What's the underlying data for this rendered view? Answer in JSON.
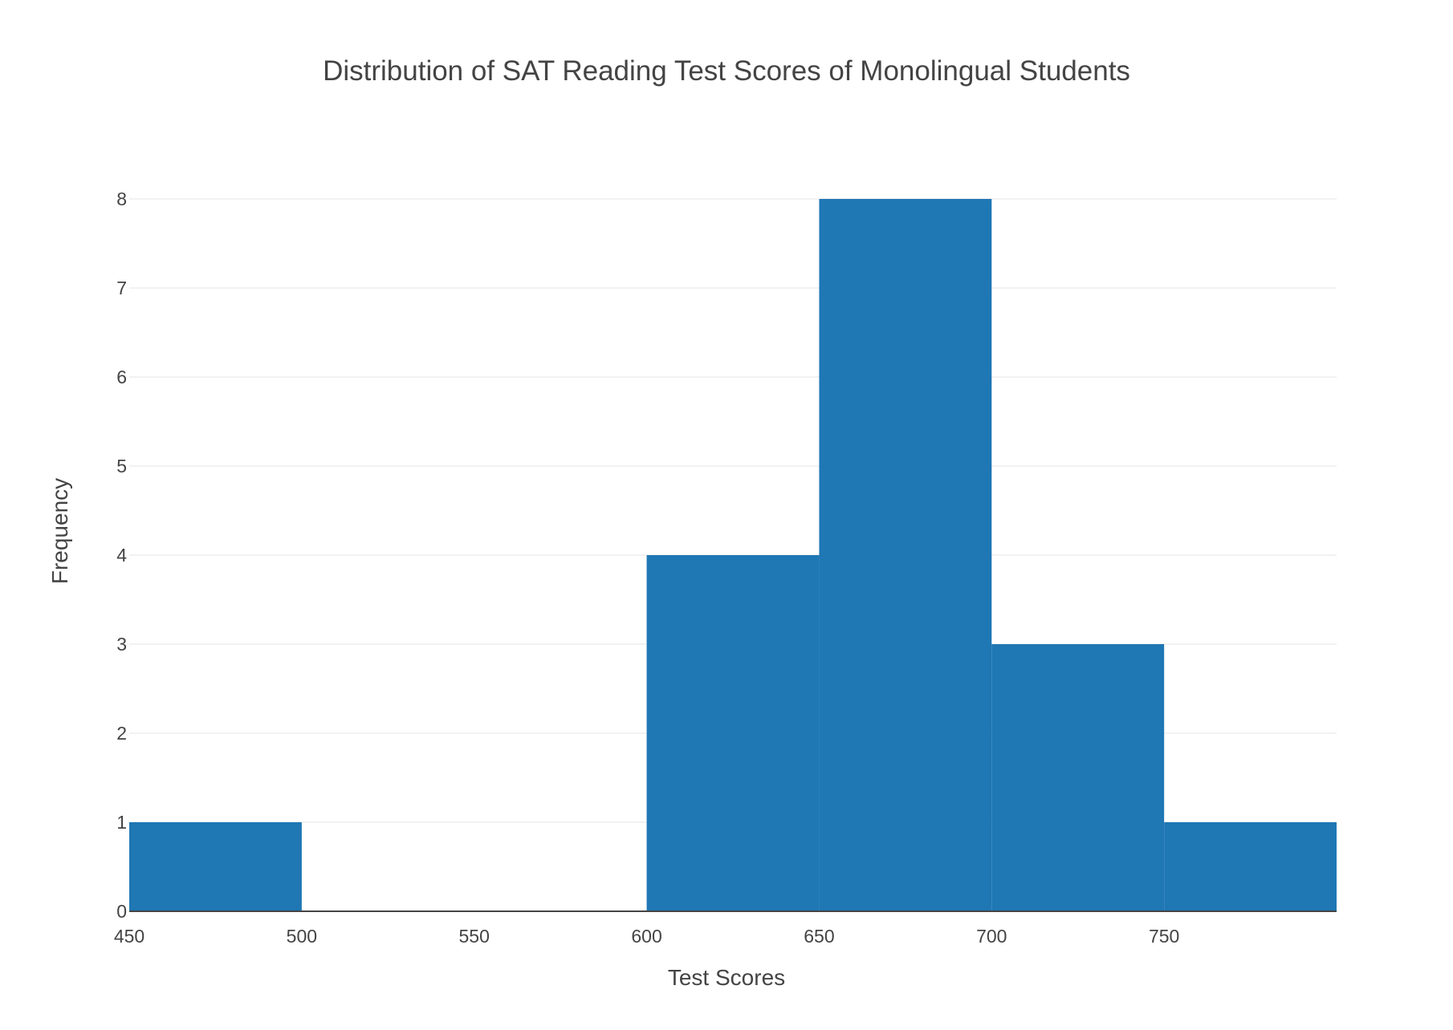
{
  "chart_data": {
    "type": "bar",
    "title": "Distribution of SAT Reading Test Scores of Monolingual Students",
    "xlabel": "Test Scores",
    "ylabel": "Frequency",
    "xlim": [
      450,
      800
    ],
    "ylim": [
      0,
      8
    ],
    "x_ticks": [
      450,
      500,
      550,
      600,
      650,
      700,
      750
    ],
    "y_ticks": [
      0,
      1,
      2,
      3,
      4,
      5,
      6,
      7,
      8
    ],
    "bins": [
      {
        "start": 450,
        "end": 500,
        "count": 1
      },
      {
        "start": 500,
        "end": 550,
        "count": 0
      },
      {
        "start": 550,
        "end": 600,
        "count": 0
      },
      {
        "start": 600,
        "end": 650,
        "count": 4
      },
      {
        "start": 650,
        "end": 700,
        "count": 8
      },
      {
        "start": 700,
        "end": 750,
        "count": 3
      },
      {
        "start": 750,
        "end": 800,
        "count": 1
      }
    ],
    "bar_color": "#1f77b4",
    "grid_color": "#eeeeee",
    "grid": true
  }
}
